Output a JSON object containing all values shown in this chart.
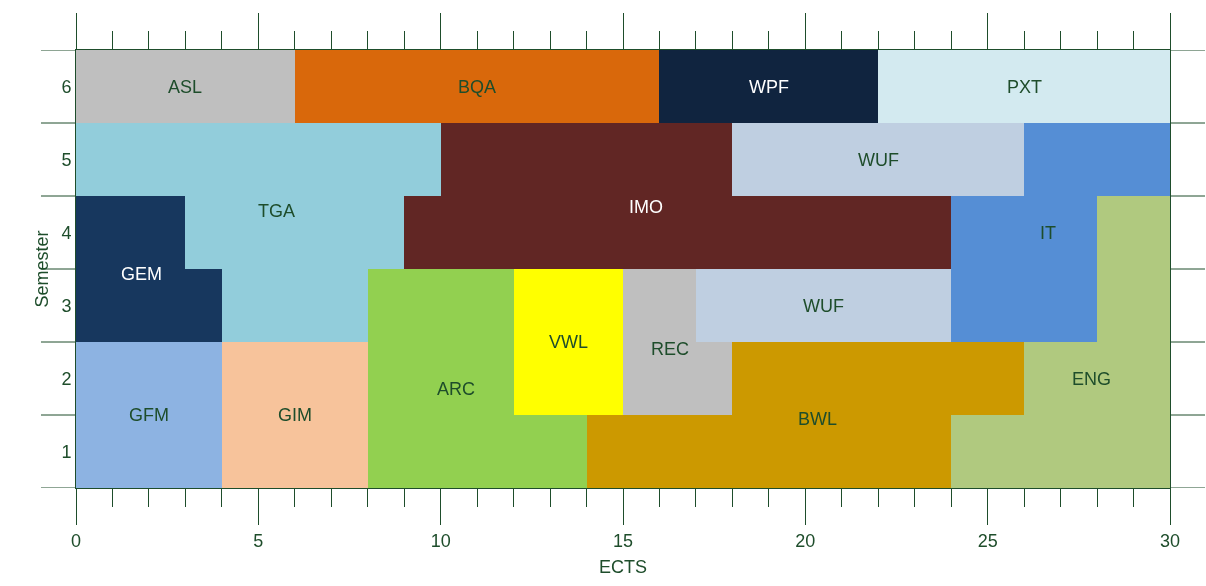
{
  "chart_data": {
    "type": "bar",
    "orientation": "horizontal",
    "xlabel": "ECTS",
    "ylabel": "Semester",
    "categories": [
      "6",
      "5",
      "4",
      "3",
      "2",
      "1"
    ],
    "xlim": [
      0,
      30
    ],
    "xticks": [
      0,
      5,
      10,
      15,
      20,
      25,
      30
    ],
    "grid": "y",
    "series": [
      {
        "name": "ASL",
        "color": "#bfbfbf",
        "base": [
          0,
          null,
          null,
          null,
          null,
          null
        ],
        "values": [
          6,
          null,
          null,
          null,
          null,
          null
        ]
      },
      {
        "name": "BQA",
        "color": "#d9680b",
        "base": [
          6,
          null,
          null,
          null,
          null,
          null
        ],
        "values": [
          10,
          null,
          null,
          null,
          null,
          null
        ]
      },
      {
        "name": "WPF",
        "color": "#10243f",
        "base": [
          16,
          null,
          null,
          null,
          null,
          null
        ],
        "values": [
          6,
          null,
          null,
          null,
          null,
          null
        ]
      },
      {
        "name": "PXT",
        "color": "#d3eaf0",
        "base": [
          22,
          null,
          null,
          null,
          null,
          null
        ],
        "values": [
          8,
          null,
          null,
          null,
          null,
          null
        ]
      },
      {
        "name": "TGA",
        "color": "#92cddb",
        "base": [
          null,
          0,
          3,
          4,
          null,
          null
        ],
        "values": [
          null,
          10,
          6,
          4,
          null,
          null
        ]
      },
      {
        "name": "IMO",
        "color": "#612624",
        "base": [
          null,
          10,
          9,
          null,
          null,
          null
        ],
        "values": [
          null,
          8,
          15,
          null,
          null,
          null
        ]
      },
      {
        "name": "WUF",
        "color": "#bfcfe1",
        "base": [
          null,
          18,
          null,
          null,
          null,
          null
        ],
        "values": [
          null,
          8,
          null,
          null,
          null,
          null
        ]
      },
      {
        "name": "IT",
        "color": "#558ed5",
        "base": [
          null,
          26,
          24,
          24,
          null,
          null
        ],
        "values": [
          null,
          4,
          4,
          4,
          null,
          null
        ]
      },
      {
        "name": "GEM",
        "color": "#17375e",
        "base": [
          null,
          null,
          0,
          0,
          null,
          null
        ],
        "values": [
          null,
          null,
          3,
          4,
          null,
          null
        ]
      },
      {
        "name": "ENG",
        "color": "#b0c97f",
        "base": [
          null,
          null,
          28,
          28,
          26,
          24
        ],
        "values": [
          null,
          null,
          2,
          2,
          4,
          6
        ]
      },
      {
        "name": "GFM",
        "color": "#8db3e2",
        "base": [
          null,
          null,
          null,
          null,
          0,
          0
        ],
        "values": [
          null,
          null,
          null,
          null,
          4,
          4
        ]
      },
      {
        "name": "GIM",
        "color": "#f7c39b",
        "base": [
          null,
          null,
          null,
          null,
          4,
          4
        ],
        "values": [
          null,
          null,
          null,
          null,
          4,
          4
        ]
      },
      {
        "name": "ARC",
        "color": "#92d050",
        "base": [
          null,
          null,
          null,
          8,
          8,
          8
        ],
        "values": [
          null,
          null,
          null,
          4,
          4,
          6
        ]
      },
      {
        "name": "VWL",
        "color": "#ffff00",
        "base": [
          null,
          null,
          null,
          12,
          12,
          null
        ],
        "values": [
          null,
          null,
          null,
          3,
          3,
          null
        ]
      },
      {
        "name": "REC",
        "color": "#bfbfbf",
        "base": [
          null,
          null,
          null,
          15,
          15,
          null
        ],
        "values": [
          null,
          null,
          null,
          2,
          3,
          null
        ]
      },
      {
        "name": "WUF",
        "color": "#bfcfe1",
        "base": [
          null,
          null,
          null,
          17,
          null,
          null
        ],
        "values": [
          null,
          null,
          null,
          7,
          null,
          null
        ]
      },
      {
        "name": "BWL",
        "color": "#cc9900",
        "base": [
          null,
          null,
          null,
          null,
          18,
          14
        ],
        "values": [
          null,
          null,
          null,
          null,
          8,
          10
        ]
      }
    ]
  }
}
